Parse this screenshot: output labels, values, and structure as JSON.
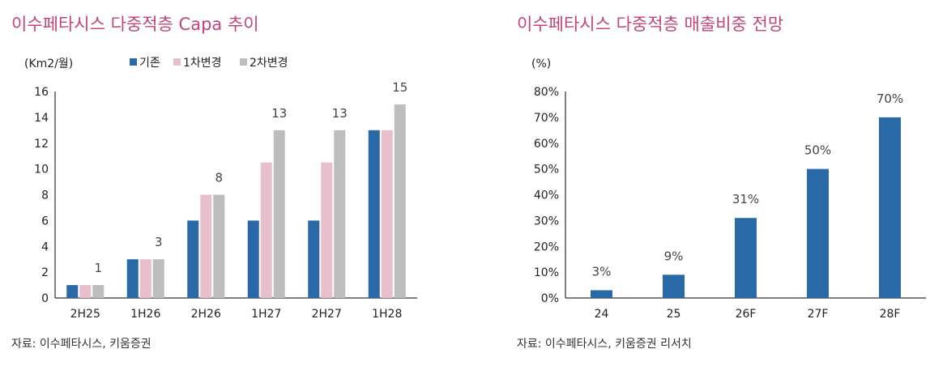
{
  "left_panel": {
    "title": "이수페타시스 다중적층 Capa 추이",
    "source": "자료: 이수페타시스, 키움증권",
    "chart_data": {
      "type": "bar",
      "ylabel": "(Km2/월)",
      "categories": [
        "2H25",
        "1H26",
        "2H26",
        "1H27",
        "2H27",
        "1H28"
      ],
      "ylim": [
        0,
        16
      ],
      "yticks": [
        0,
        2,
        4,
        6,
        8,
        10,
        12,
        14,
        16
      ],
      "legend_position": "top",
      "series": [
        {
          "name": "기존",
          "color": "#2a69a8",
          "values": [
            1,
            3,
            6,
            6,
            6,
            13
          ]
        },
        {
          "name": "1차변경",
          "color": "#e8bfcd",
          "values": [
            1,
            3,
            8,
            10.5,
            10.5,
            13
          ]
        },
        {
          "name": "2차변경",
          "color": "#bdbdbd",
          "values": [
            1,
            3,
            8,
            13,
            13,
            15
          ]
        }
      ],
      "data_labels": [
        "1",
        "3",
        "8",
        "13",
        "13",
        "15"
      ]
    }
  },
  "right_panel": {
    "title": "이수페타시스 다중적층 매출비중 전망",
    "source": "자료: 이수페타시스, 키움증권 리서치",
    "chart_data": {
      "type": "bar",
      "ylabel": "(%)",
      "categories": [
        "24",
        "25",
        "26F",
        "27F",
        "28F"
      ],
      "ylim": [
        0,
        80
      ],
      "yticks": [
        "0%",
        "10%",
        "20%",
        "30%",
        "40%",
        "50%",
        "60%",
        "70%",
        "80%"
      ],
      "color": "#2a69a8",
      "values": [
        3,
        9,
        31,
        50,
        70
      ],
      "data_labels": [
        "3%",
        "9%",
        "31%",
        "50%",
        "70%"
      ]
    }
  }
}
